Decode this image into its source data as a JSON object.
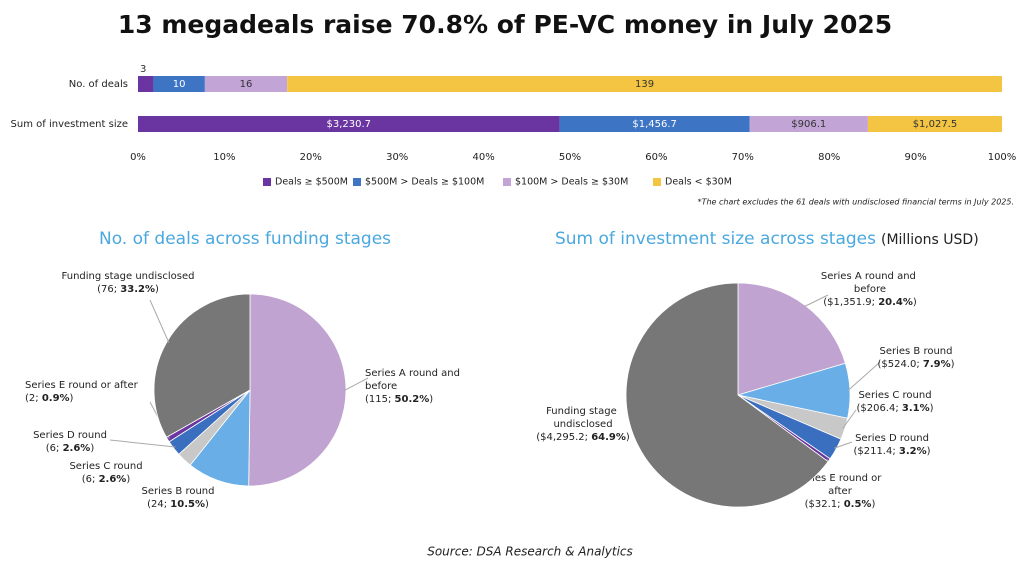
{
  "title": "13 megadeals raise 70.8% of PE-VC money in July 2025",
  "source": "Source: DSA Research & Analytics",
  "chart_data": [
    {
      "type": "bar",
      "orientation": "horizontal",
      "stacked": "percent",
      "note": "*The chart excludes the 61 deals with undisclosed financial terms in July 2025.",
      "categories": [
        "No. of deals",
        "Sum of investment size"
      ],
      "series": [
        {
          "name": "Deals ≥ $500M",
          "color": "#6a35a0",
          "values": [
            3,
            3230.7
          ],
          "value_labels": [
            "3",
            "$3,230.7"
          ]
        },
        {
          "name": "$500M > Deals ≥ $100M",
          "color": "#3d74c4",
          "values": [
            10,
            1456.7
          ],
          "value_labels": [
            "10",
            "$1,456.7"
          ]
        },
        {
          "name": "$100M > Deals ≥ $30M",
          "color": "#c2a5d6",
          "values": [
            16,
            906.1
          ],
          "value_labels": [
            "16",
            "$906.1"
          ]
        },
        {
          "name": "Deals < $30M",
          "color": "#f4c542",
          "values": [
            139,
            1027.5
          ],
          "value_labels": [
            "139",
            "$1,027.5"
          ]
        }
      ],
      "xlim": [
        0,
        100
      ],
      "xticks": [
        {
          "value": 0,
          "label": "0%"
        },
        {
          "value": 10,
          "label": "10%"
        },
        {
          "value": 20,
          "label": "20%"
        },
        {
          "value": 30,
          "label": "30%"
        },
        {
          "value": 40,
          "label": "40%"
        },
        {
          "value": 50,
          "label": "50%"
        },
        {
          "value": 60,
          "label": "60%"
        },
        {
          "value": 70,
          "label": "70%"
        },
        {
          "value": 80,
          "label": "80%"
        },
        {
          "value": 90,
          "label": "90%"
        },
        {
          "value": 100,
          "label": "100%"
        }
      ],
      "legend": "bottom"
    },
    {
      "type": "pie",
      "title": "No. of deals across funding stages",
      "categories": [
        "Series A round and before",
        "Series B round",
        "Series C round",
        "Series D round",
        "Series E round or after",
        "Funding stage undisclosed"
      ],
      "values": [
        115,
        24,
        6,
        6,
        2,
        76
      ],
      "value_labels": [
        "(115; 50.2%)",
        "(24; 10.5%)",
        "(6; 2.6%)",
        "(6; 2.6%)",
        "(2; 0.9%)",
        "(76; 33.2%)"
      ],
      "colors": [
        "#c0a3d0",
        "#6aaee8",
        "#c8c8c8",
        "#3a6fc0",
        "#6a35a0",
        "#777777"
      ]
    },
    {
      "type": "pie",
      "title": "Sum of investment size across stages",
      "subtitle": "(Millions USD)",
      "categories": [
        "Series A round and before",
        "Series B round",
        "Series C round",
        "Series D round",
        "Series E round or after",
        "Funding stage undisclosed"
      ],
      "values": [
        1351.9,
        524.0,
        206.4,
        211.4,
        32.1,
        4295.2
      ],
      "value_labels": [
        "($1,351.9; 20.4%)",
        "($524.0; 7.9%)",
        "($206.4; 3.1%)",
        "($211.4; 3.2%)",
        "($32.1; 0.5%)",
        "($4,295.2; 64.9%)"
      ],
      "colors": [
        "#c0a3d0",
        "#6aaee8",
        "#c8c8c8",
        "#3a6fc0",
        "#6a35a0",
        "#777777"
      ]
    }
  ]
}
